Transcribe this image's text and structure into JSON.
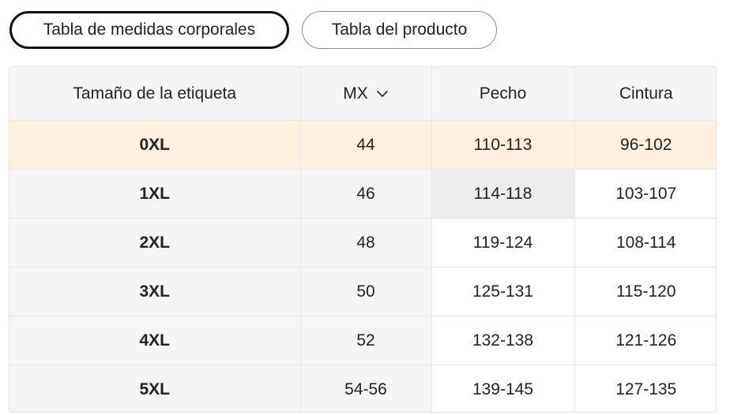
{
  "tabs": [
    {
      "label": "Tabla de medidas corporales",
      "active": true
    },
    {
      "label": "Tabla del producto",
      "active": false
    }
  ],
  "table": {
    "headers": {
      "size_label": "Tamaño de la etiqueta",
      "unit": "MX",
      "chest": "Pecho",
      "waist": "Cintura"
    },
    "rows": [
      {
        "size": "0XL",
        "mx": "44",
        "chest": "110-113",
        "waist": "96-102"
      },
      {
        "size": "1XL",
        "mx": "46",
        "chest": "114-118",
        "waist": "103-107"
      },
      {
        "size": "2XL",
        "mx": "48",
        "chest": "119-124",
        "waist": "108-114"
      },
      {
        "size": "3XL",
        "mx": "50",
        "chest": "125-131",
        "waist": "115-120"
      },
      {
        "size": "4XL",
        "mx": "52",
        "chest": "132-138",
        "waist": "121-126"
      },
      {
        "size": "5XL",
        "mx": "54-56",
        "chest": "139-145",
        "waist": "127-135"
      }
    ]
  },
  "icons": {
    "unit_dropdown": "chevron-down-icon"
  },
  "colors": {
    "highlight_row": "#fdf0e1",
    "header_bg": "#f5f5f5",
    "hover_cell": "#ececec"
  }
}
